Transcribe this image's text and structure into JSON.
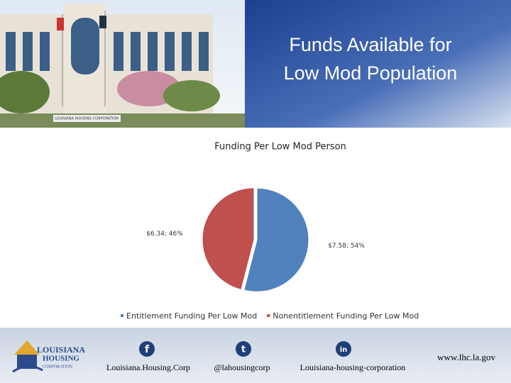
{
  "header": {
    "title": "Funds Available for Low Mod Population",
    "photo_sign": "LOUISIANA HOUSING CORPORATION"
  },
  "chart_data": {
    "type": "pie",
    "title": "Funding Per Low Mod Person",
    "categories": [
      "Entitlement Funding Per Low Mod",
      "Nonentitlement Funding Per Low Mod"
    ],
    "values": [
      54,
      46
    ],
    "value_labels": [
      "$7.58; 54%",
      "$6.34; 46%"
    ],
    "colors": [
      "#4f81bd",
      "#c0504d"
    ],
    "legend": "bottom"
  },
  "footer": {
    "logo": [
      "LOUISIANA",
      "HOUSING",
      "CORPORATION"
    ],
    "links": [
      "Louisiana.Housing.Corp",
      "@lahousingcorp",
      "Louisiana-housing-corporation"
    ],
    "website": "www.lhc.la.gov"
  }
}
